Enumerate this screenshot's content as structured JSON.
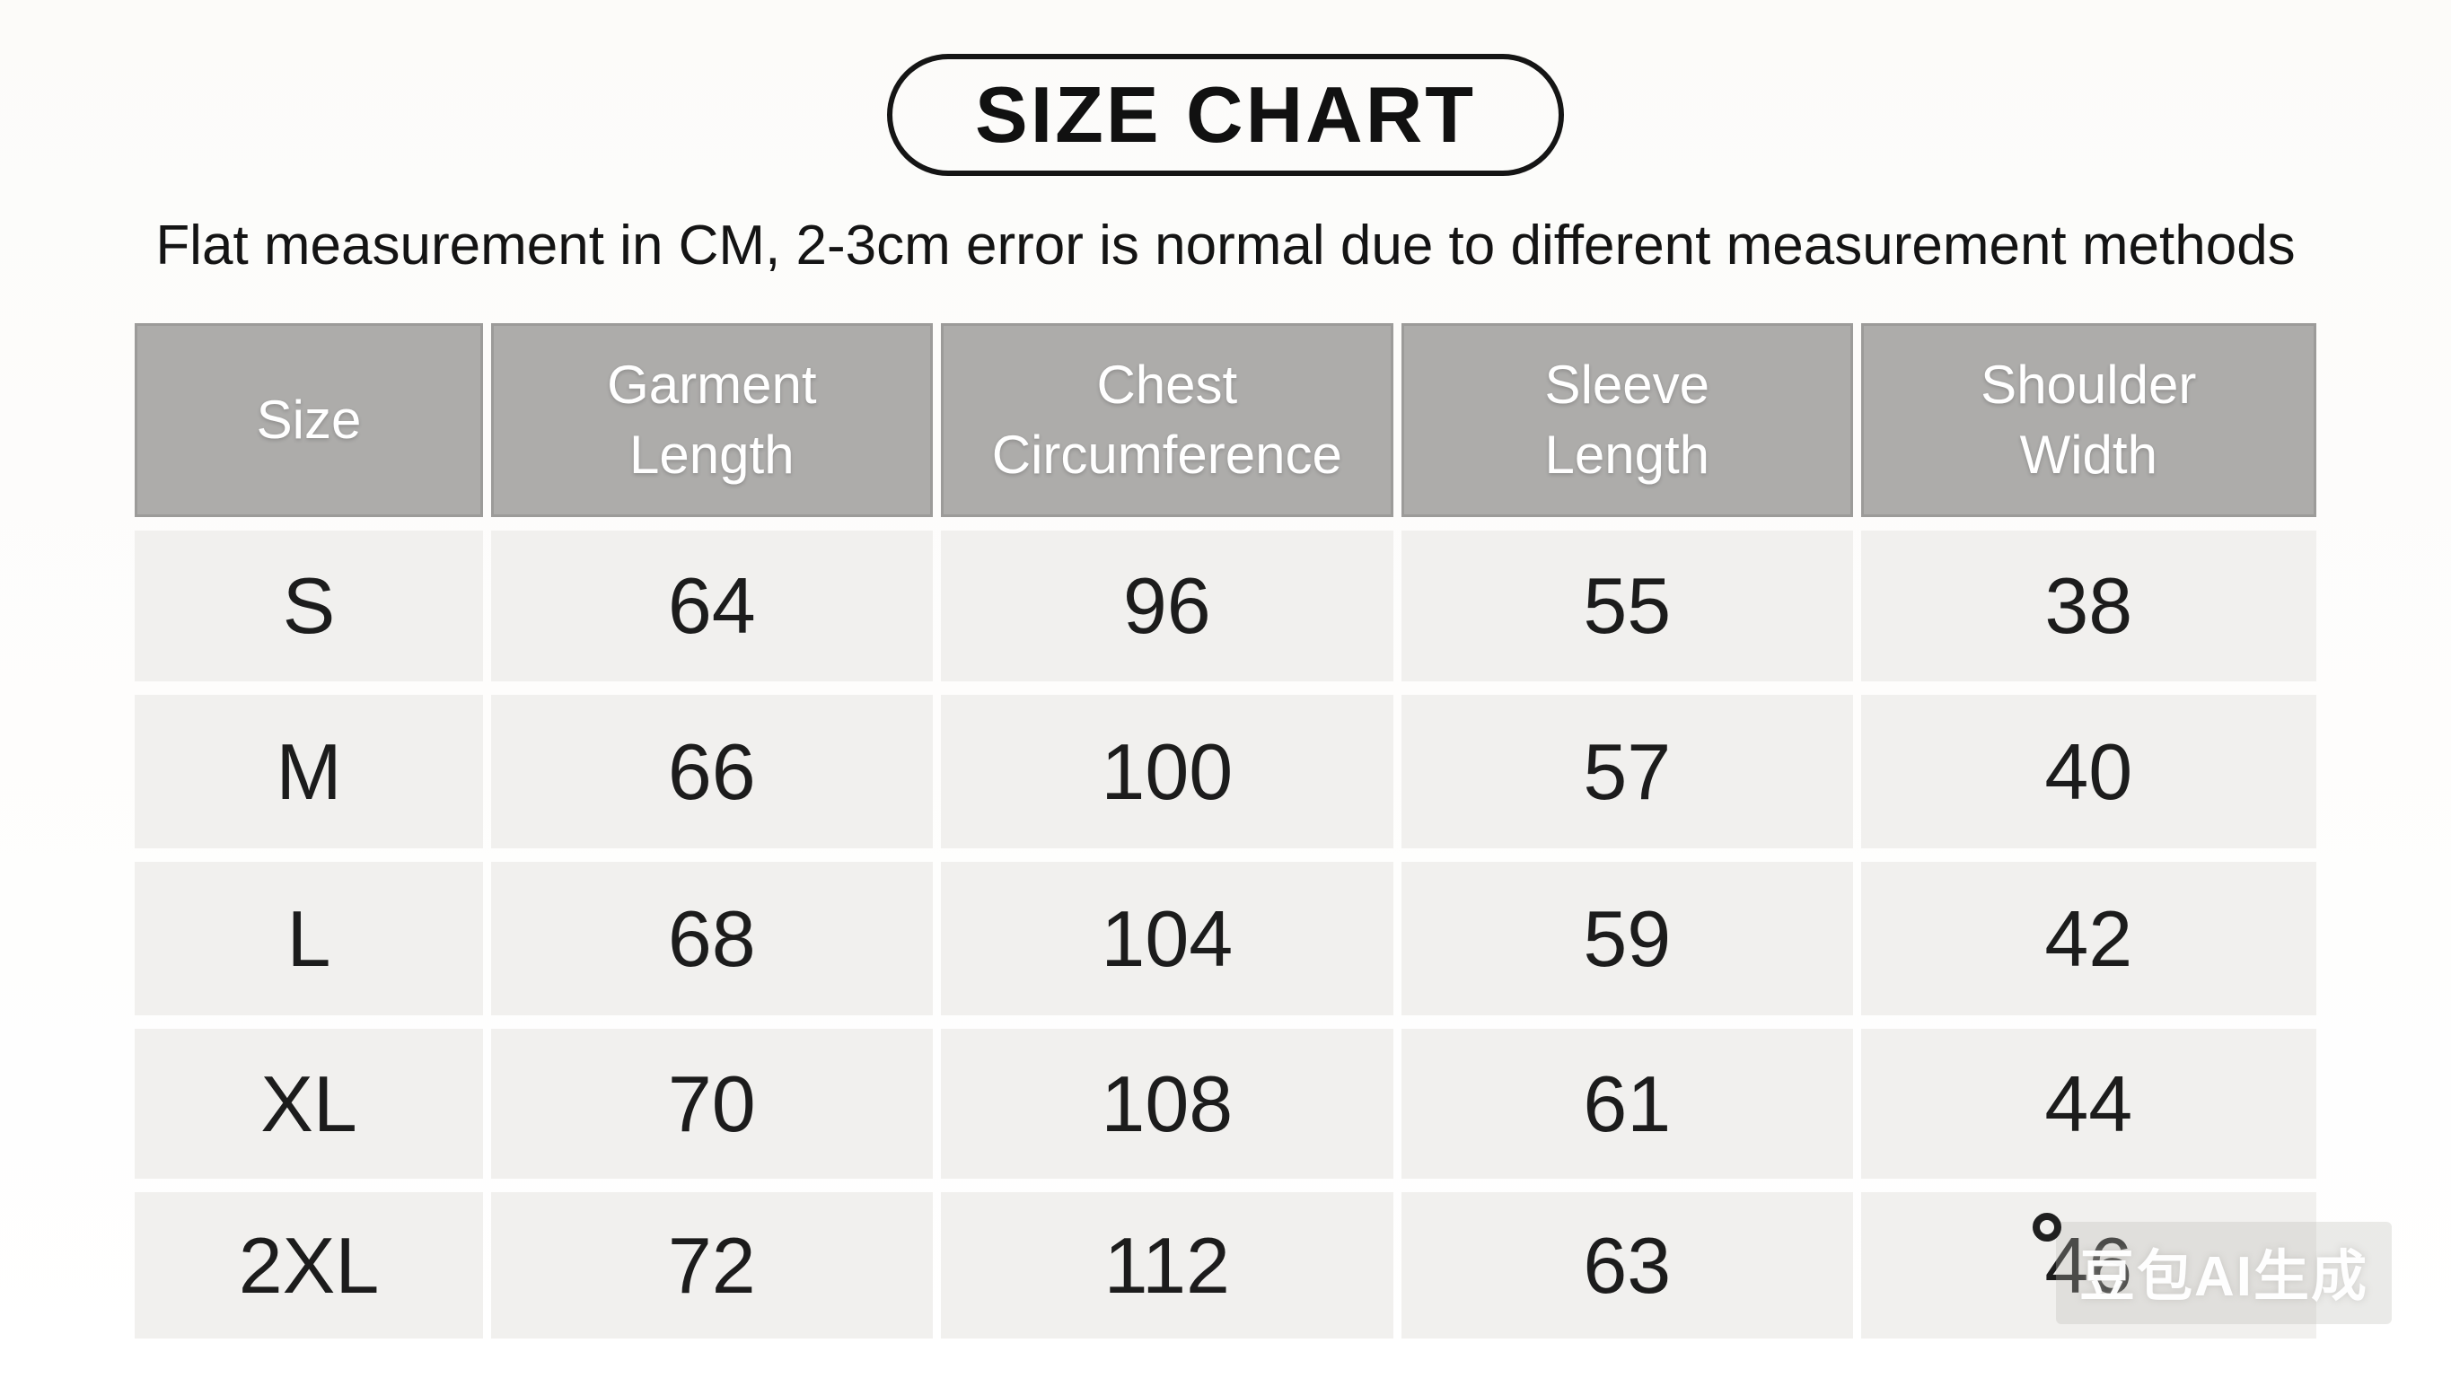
{
  "page": {
    "title": "SIZE CHART",
    "subtitle": "Flat measurement in CM, 2-3cm error is normal due to different measurement methods"
  },
  "chart_data": {
    "type": "table",
    "title": "SIZE CHART",
    "note": "Flat measurement in CM, 2-3cm error is normal due to different measurement methods",
    "unit": "cm",
    "columns": [
      "Size",
      "Garment Length",
      "Chest Circumference",
      "Sleeve Length",
      "Shoulder Width"
    ],
    "rows": [
      [
        "S",
        64,
        96,
        55,
        38
      ],
      [
        "M",
        66,
        100,
        57,
        40
      ],
      [
        "L",
        68,
        104,
        59,
        42
      ],
      [
        "XL",
        70,
        108,
        61,
        44
      ],
      [
        "2XL",
        72,
        112,
        63,
        46
      ]
    ]
  },
  "table": {
    "headers": [
      "Size",
      "Garment\nLength",
      "Chest\nCircumference",
      "Sleeve\nLength",
      "Shoulder\nWidth"
    ],
    "rows": [
      {
        "cells": [
          "S",
          "64",
          "96",
          "55",
          "38"
        ]
      },
      {
        "cells": [
          "M",
          "66",
          "100",
          "57",
          "40"
        ]
      },
      {
        "cells": [
          "L",
          "68",
          "104",
          "59",
          "42"
        ]
      },
      {
        "cells": [
          "XL",
          "70",
          "108",
          "61",
          "44"
        ]
      },
      {
        "cells": [
          "2XL",
          "72",
          "112",
          "63",
          "46"
        ]
      }
    ]
  },
  "watermark": {
    "text": "豆包AI生成"
  },
  "colors": {
    "page_bg": "#fcfbf9",
    "header_bg": "#adacaa",
    "header_border": "#9c9b99",
    "header_text": "#ffffff",
    "cell_bg": "#f1f0ee",
    "text": "#1c1c1c",
    "title_border": "#151515"
  }
}
